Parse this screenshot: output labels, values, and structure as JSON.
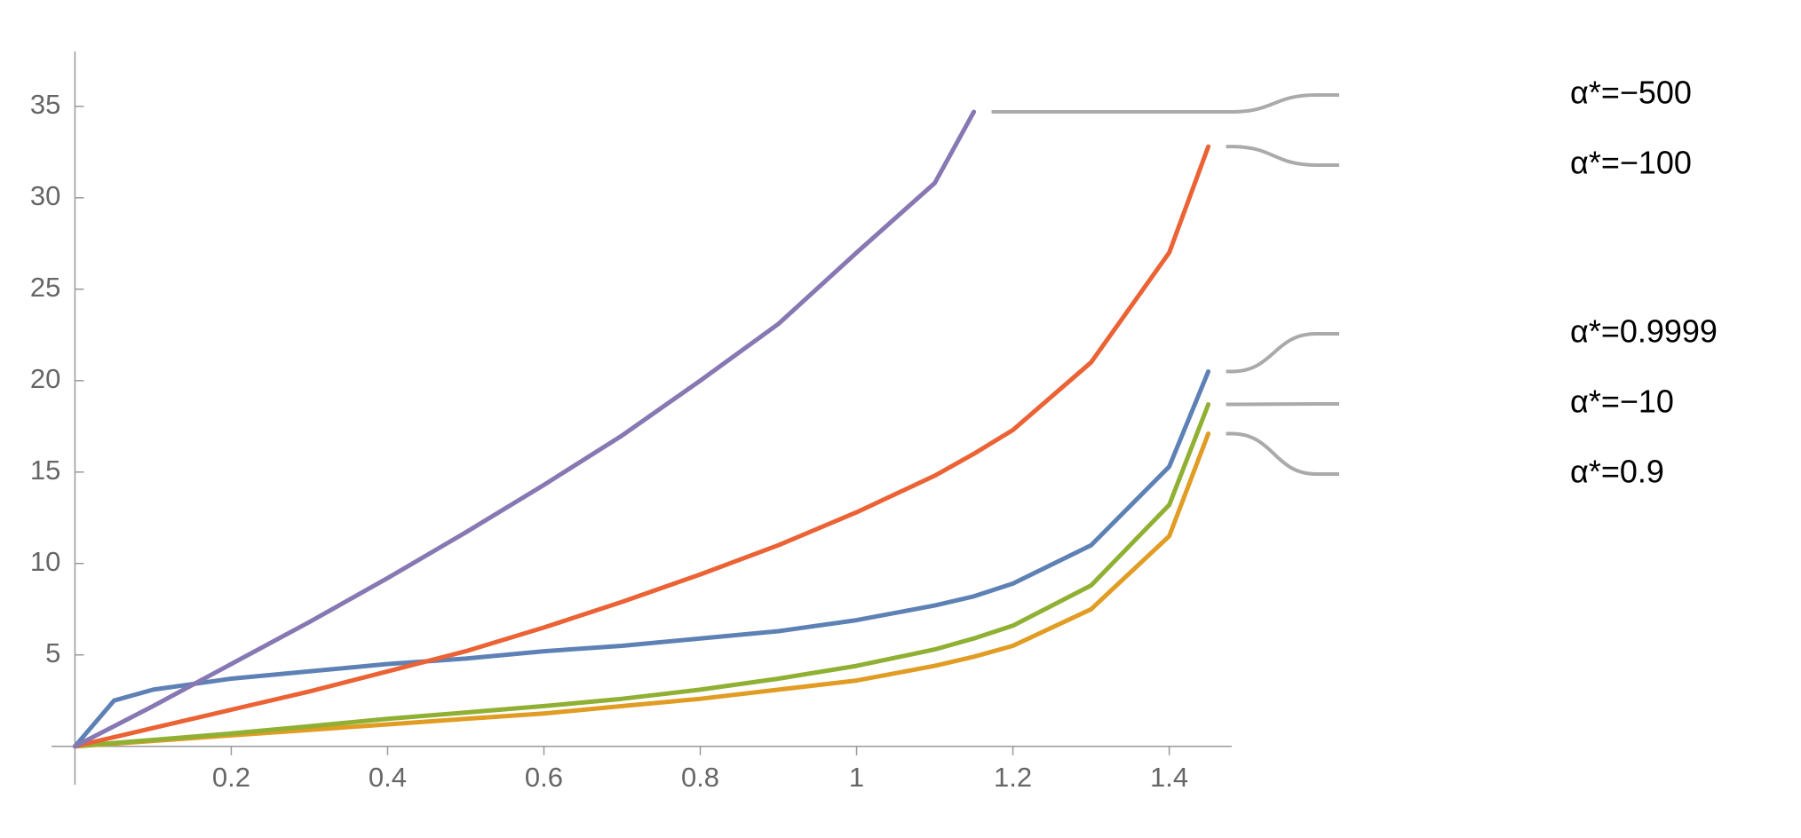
{
  "chart_data": {
    "type": "line",
    "x": [
      0,
      0.05,
      0.1,
      0.2,
      0.3,
      0.4,
      0.5,
      0.6,
      0.7,
      0.8,
      0.9,
      1.0,
      1.1,
      1.15,
      1.2,
      1.3,
      1.4,
      1.45
    ],
    "series": [
      {
        "name": "α*=0.9999",
        "color": "#5e81b5",
        "values": [
          0,
          2.5,
          3.1,
          3.7,
          4.1,
          4.5,
          4.8,
          5.2,
          5.5,
          5.9,
          6.3,
          6.9,
          7.7,
          8.2,
          8.9,
          11.0,
          15.3,
          20.5
        ]
      },
      {
        "name": "α*=0.9",
        "color": "#e19c24",
        "values": [
          0,
          0.15,
          0.3,
          0.6,
          0.9,
          1.2,
          1.5,
          1.8,
          2.2,
          2.6,
          3.1,
          3.6,
          4.4,
          4.9,
          5.5,
          7.5,
          11.5,
          17.1
        ]
      },
      {
        "name": "α*=−10",
        "color": "#8fb032",
        "values": [
          0,
          0.18,
          0.35,
          0.7,
          1.1,
          1.5,
          1.85,
          2.2,
          2.6,
          3.1,
          3.7,
          4.4,
          5.3,
          5.9,
          6.6,
          8.8,
          13.2,
          18.7
        ]
      },
      {
        "name": "α*=−100",
        "color": "#eb6235",
        "values": [
          0,
          0.5,
          1.0,
          2.0,
          3.0,
          4.1,
          5.2,
          6.5,
          7.9,
          9.4,
          11.0,
          12.8,
          14.8,
          16.0,
          17.3,
          21.0,
          27.0,
          32.8
        ]
      },
      {
        "name": "α*=−500",
        "color": "#8778b3",
        "values": [
          0,
          1.1,
          2.2,
          4.5,
          6.8,
          9.2,
          11.7,
          14.3,
          17.0,
          20.0,
          23.1,
          27.0,
          30.8,
          34.7,
          null,
          null,
          null,
          null
        ]
      }
    ],
    "xlim": [
      -0.03,
      1.48
    ],
    "ylim": [
      -2.1,
      38
    ],
    "xticks": [
      0.2,
      0.4,
      0.6,
      0.8,
      1.0,
      1.2,
      1.4
    ],
    "yticks": [
      5,
      10,
      15,
      20,
      25,
      30,
      35
    ],
    "grid": false,
    "legend": "right"
  }
}
